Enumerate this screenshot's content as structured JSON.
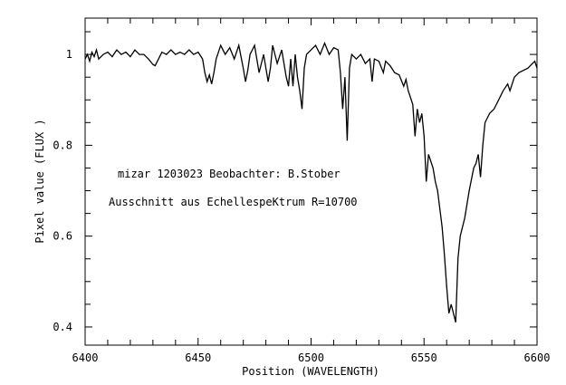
{
  "chart_data": {
    "type": "line",
    "title": "",
    "annotations": [
      "mizar 1203023 Beobachter: B.Stober",
      "Ausschnitt aus EchellespeKtrum R=10700"
    ],
    "xlabel": "Position (WAVELENGTH)",
    "ylabel": "Pixel value (FLUX )",
    "xlim": [
      6400,
      6600
    ],
    "ylim": [
      0.36,
      1.08
    ],
    "xticks": [
      6400,
      6450,
      6500,
      6550,
      6600
    ],
    "xtick_labels": [
      "6400",
      "6450",
      "6500",
      "6550",
      "6600"
    ],
    "yticks": [
      0.4,
      0.6,
      0.8,
      1
    ],
    "ytick_labels": [
      "0.4",
      "0.6",
      "0.8",
      "1"
    ],
    "grid": false,
    "color": "#000000",
    "series": [
      {
        "x": [
          6400,
          6401,
          6402,
          6403,
          6404,
          6405,
          6406,
          6408,
          6410,
          6412,
          6414,
          6416,
          6418,
          6420,
          6422,
          6424,
          6426,
          6428,
          6430,
          6431,
          6432,
          6434,
          6436,
          6438,
          6440,
          6442,
          6444,
          6446,
          6448,
          6450,
          6452,
          6453,
          6454,
          6455,
          6456,
          6457,
          6458,
          6460,
          6462,
          6464,
          6466,
          6468,
          6470,
          6471,
          6472,
          6473,
          6475,
          6477,
          6479,
          6481,
          6482,
          6483,
          6485,
          6487,
          6489,
          6490,
          6491,
          6492,
          6493,
          6494,
          6495,
          6496,
          6497,
          6498,
          6500,
          6502,
          6504,
          6506,
          6508,
          6510,
          6512,
          6513,
          6514,
          6515,
          6516,
          6517,
          6518,
          6520,
          6522,
          6524,
          6526,
          6527,
          6528,
          6530,
          6532,
          6533,
          6535,
          6537,
          6539,
          6541,
          6542,
          6543,
          6544,
          6545,
          6546,
          6547,
          6548,
          6549,
          6550,
          6551,
          6552,
          6553,
          6554,
          6555,
          6556,
          6557,
          6558,
          6559,
          6560,
          6561,
          6562,
          6563,
          6564,
          6565,
          6566,
          6567,
          6568,
          6570,
          6572,
          6573,
          6574,
          6575,
          6576,
          6577,
          6579,
          6581,
          6583,
          6585,
          6587,
          6588,
          6590,
          6592,
          6594,
          6596,
          6597,
          6598,
          6599,
          6600
        ],
        "y": [
          0.99,
          1.0,
          0.985,
          1.005,
          0.995,
          1.01,
          0.99,
          1.0,
          1.005,
          0.995,
          1.01,
          1.0,
          1.005,
          0.995,
          1.01,
          1.0,
          1.0,
          0.99,
          0.978,
          0.975,
          0.985,
          1.005,
          1.0,
          1.01,
          1.0,
          1.005,
          1.0,
          1.01,
          1.0,
          1.005,
          0.99,
          0.96,
          0.94,
          0.955,
          0.935,
          0.96,
          0.99,
          1.02,
          1.0,
          1.015,
          0.99,
          1.02,
          0.97,
          0.94,
          0.965,
          1.0,
          1.02,
          0.96,
          1.0,
          0.94,
          0.97,
          1.02,
          0.98,
          1.01,
          0.95,
          0.93,
          0.99,
          0.93,
          1.0,
          0.95,
          0.92,
          0.88,
          0.97,
          1.0,
          1.01,
          1.02,
          1.0,
          1.025,
          1.0,
          1.015,
          1.01,
          0.96,
          0.88,
          0.95,
          0.81,
          0.97,
          1.0,
          0.99,
          1.0,
          0.98,
          0.99,
          0.94,
          0.99,
          0.985,
          0.96,
          0.985,
          0.975,
          0.96,
          0.955,
          0.93,
          0.945,
          0.92,
          0.905,
          0.89,
          0.82,
          0.88,
          0.85,
          0.87,
          0.82,
          0.72,
          0.78,
          0.765,
          0.75,
          0.72,
          0.7,
          0.66,
          0.62,
          0.56,
          0.49,
          0.43,
          0.45,
          0.43,
          0.41,
          0.55,
          0.6,
          0.62,
          0.64,
          0.7,
          0.75,
          0.76,
          0.78,
          0.73,
          0.8,
          0.85,
          0.87,
          0.88,
          0.9,
          0.92,
          0.935,
          0.92,
          0.95,
          0.96,
          0.965,
          0.97,
          0.975,
          0.98,
          0.985,
          0.97
        ]
      }
    ]
  }
}
